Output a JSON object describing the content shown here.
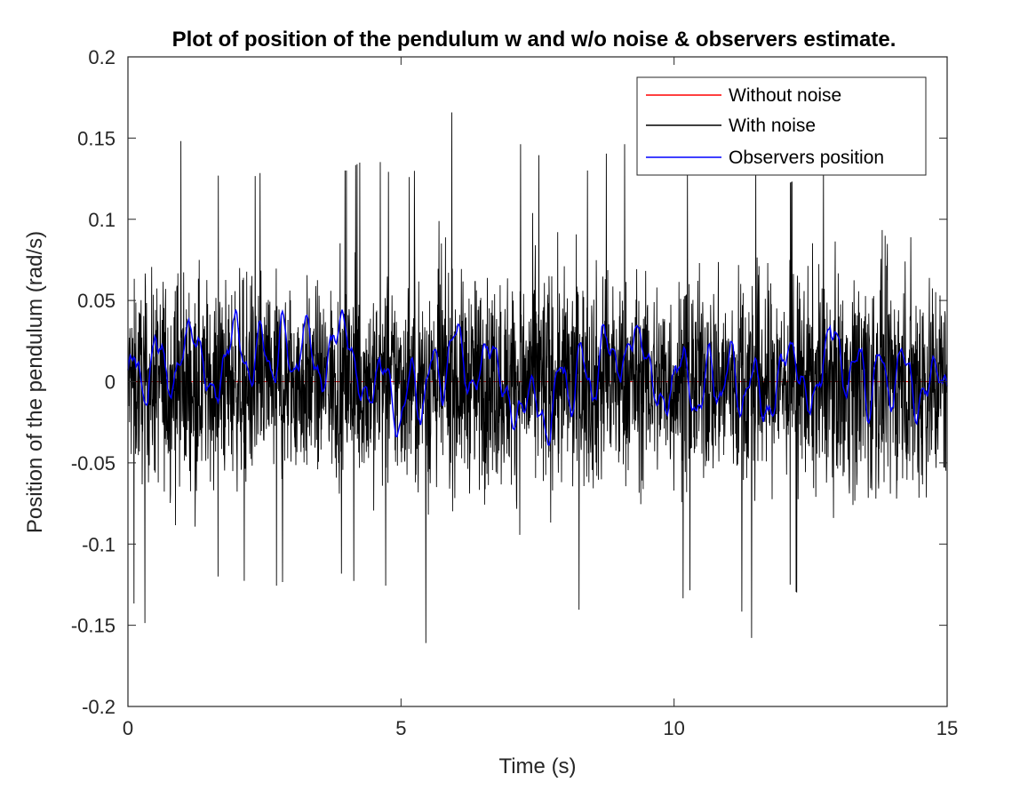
{
  "chart_data": {
    "type": "line",
    "title": "Plot of position of the pendulum w and w/o noise & observers estimate.",
    "xlabel": "Time (s)",
    "ylabel": "Position of the pendulum (rad/s)",
    "xlim": [
      0,
      15
    ],
    "ylim": [
      -0.2,
      0.2
    ],
    "xticks": [
      0,
      5,
      10,
      15
    ],
    "xtick_labels": [
      "0",
      "5",
      "10",
      "15"
    ],
    "yticks": [
      0.2,
      0.15,
      0.1,
      0.05,
      0,
      -0.05,
      -0.1,
      -0.15,
      -0.2
    ],
    "ytick_labels": [
      "0.2",
      "0.15",
      "0.1",
      "0.05",
      "0",
      "-0.05",
      "-0.1",
      "-0.15",
      "-0.2"
    ],
    "grid": false,
    "legend_position": "top-right",
    "series": [
      {
        "name": "Without noise",
        "color": "#ff0000",
        "x": [
          0,
          15
        ],
        "values": [
          0,
          0
        ]
      },
      {
        "name": "With noise",
        "color": "#000000",
        "x": [
          0,
          0.5,
          1,
          1.5,
          2,
          2.5,
          3,
          3.5,
          4,
          4.5,
          5,
          5.5,
          6,
          6.5,
          7,
          7.5,
          8,
          8.5,
          9,
          9.5,
          10,
          10.5,
          11,
          11.5,
          12,
          12.5,
          13,
          13.5,
          14,
          14.5,
          15
        ],
        "envelope_min": [
          -0.13,
          -0.16,
          -0.13,
          -0.12,
          -0.12,
          -0.13,
          -0.12,
          -0.11,
          -0.12,
          -0.13,
          -0.12,
          -0.165,
          -0.12,
          -0.13,
          -0.13,
          -0.14,
          -0.13,
          -0.15,
          -0.13,
          -0.12,
          -0.14,
          -0.12,
          -0.12,
          -0.165,
          -0.12,
          -0.14,
          -0.12,
          -0.15,
          -0.13,
          -0.15,
          -0.12
        ],
        "envelope_max": [
          0.11,
          0.12,
          0.15,
          0.13,
          0.12,
          0.13,
          0.14,
          0.13,
          0.13,
          0.14,
          0.12,
          0.14,
          0.17,
          0.13,
          0.15,
          0.14,
          0.13,
          0.13,
          0.15,
          0.13,
          0.12,
          0.14,
          0.13,
          0.14,
          0.12,
          0.13,
          0.14,
          0.15,
          0.13,
          0.15,
          0.12
        ]
      },
      {
        "name": "Observers position",
        "color": "#0000ff",
        "x": [
          0,
          0.5,
          1,
          1.5,
          2,
          2.5,
          3,
          3.5,
          4,
          4.5,
          5,
          5.5,
          6,
          6.5,
          7,
          7.5,
          8,
          8.5,
          9,
          9.5,
          10,
          10.5,
          11,
          11.5,
          12,
          12.5,
          13,
          13.5,
          14,
          14.5,
          15
        ],
        "values": [
          0.0,
          0.01,
          0.015,
          0.01,
          0.02,
          0.015,
          0.02,
          0.015,
          0.02,
          0.0,
          -0.015,
          0.0,
          0.02,
          0.005,
          0.0,
          -0.025,
          0.0,
          0.005,
          0.025,
          0.005,
          0.0,
          -0.005,
          0.005,
          -0.01,
          0.0,
          0.005,
          0.02,
          0.0,
          0.005,
          0.0,
          -0.015
        ]
      }
    ]
  }
}
